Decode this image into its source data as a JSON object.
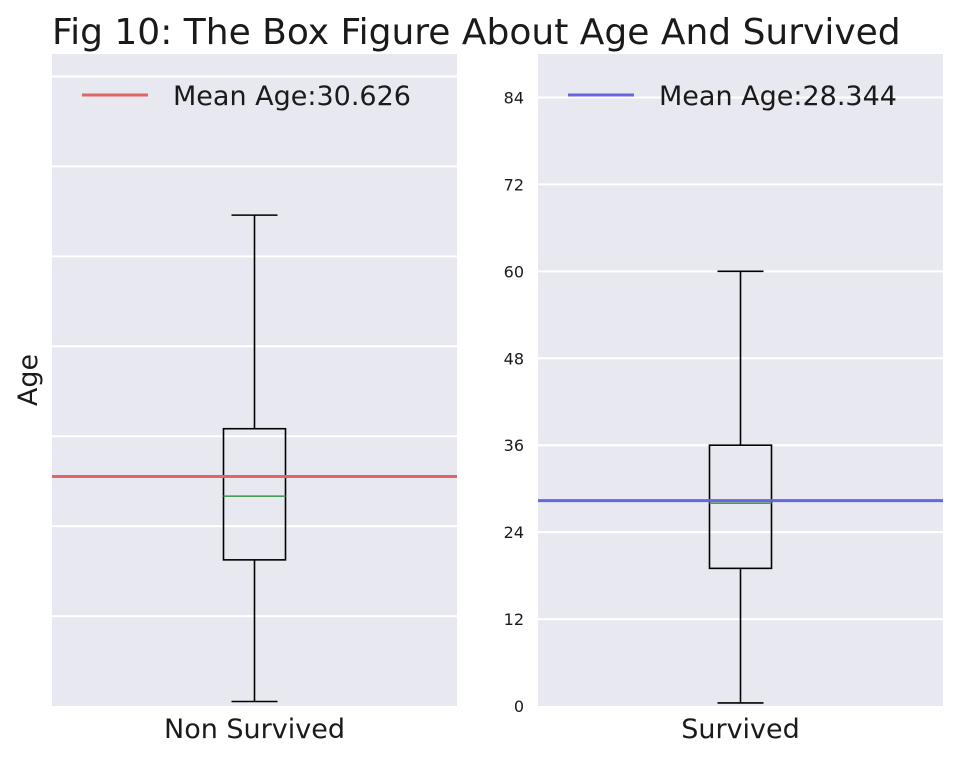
{
  "title": "Fig 10: The Box Figure About Age And Survived",
  "colors": {
    "panel_background": "#e8e8f1",
    "grid": "#ffffff",
    "median": "#4a9a5a",
    "box": "#000000"
  },
  "chart_data": [
    {
      "type": "box",
      "ylabel": "Age",
      "ylim": [
        0,
        87
      ],
      "yticks": [],
      "grid": true,
      "category": "Non Survived",
      "box": {
        "whisker_low": 0.6,
        "q1": 19.5,
        "median": 28,
        "q3": 37,
        "whisker_high": 65.5
      },
      "mean_line": {
        "value": 30.626,
        "color": "#e06666"
      },
      "legend": {
        "label": "Mean Age:30.626",
        "position": "top"
      }
    },
    {
      "type": "box",
      "ylabel": "",
      "ylim": [
        0,
        90
      ],
      "yticks": [
        0,
        12,
        24,
        36,
        48,
        60,
        72,
        84
      ],
      "grid": true,
      "category": "Survived",
      "box": {
        "whisker_low": 0.42,
        "q1": 19,
        "median": 28,
        "q3": 36,
        "whisker_high": 60
      },
      "mean_line": {
        "value": 28.344,
        "color": "#6666e0"
      },
      "legend": {
        "label": "Mean Age:28.344",
        "position": "top"
      }
    }
  ]
}
